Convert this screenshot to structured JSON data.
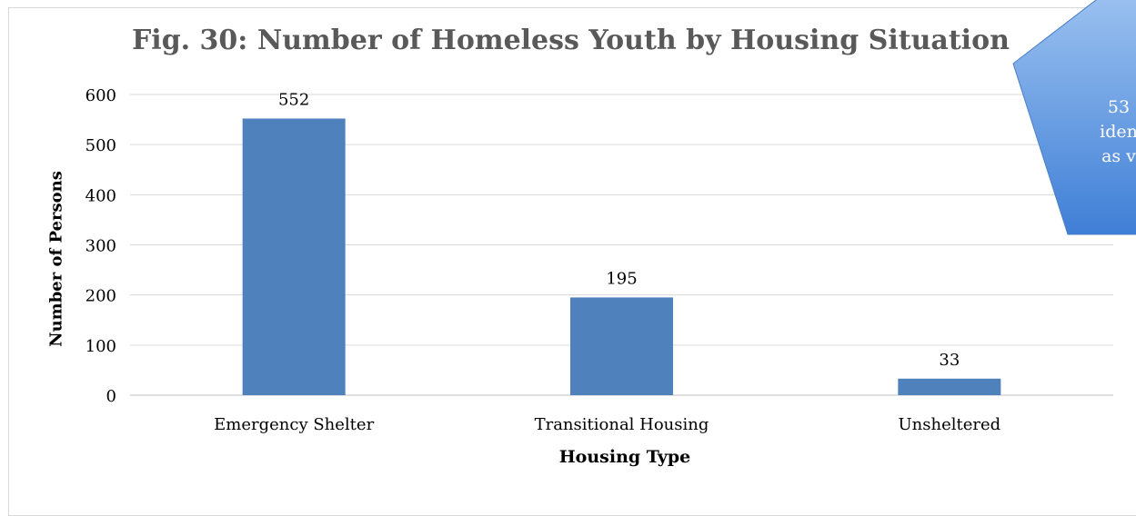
{
  "chart_data": {
    "type": "bar",
    "title": "Fig. 30: Number of Homeless Youth by Housing Situation",
    "xlabel": "Housing Type",
    "ylabel": "Number of Persons",
    "categories": [
      "Emergency Shelter",
      "Transitional Housing",
      "Unsheltered"
    ],
    "values": [
      552,
      195,
      33
    ],
    "data_labels": [
      "552",
      "195",
      "33"
    ],
    "ylim": [
      0,
      600
    ],
    "yticks": [
      0,
      100,
      200,
      300,
      400,
      500,
      600
    ],
    "ytick_labels": [
      "0",
      "100",
      "200",
      "300",
      "400",
      "500",
      "600"
    ],
    "grid": true,
    "legend": "none",
    "bar_color": "#4f81bd"
  },
  "callout": {
    "lines": "53\niden\nas v",
    "fill_top": "#9cc2f0",
    "fill_bottom": "#3f7fd6"
  }
}
